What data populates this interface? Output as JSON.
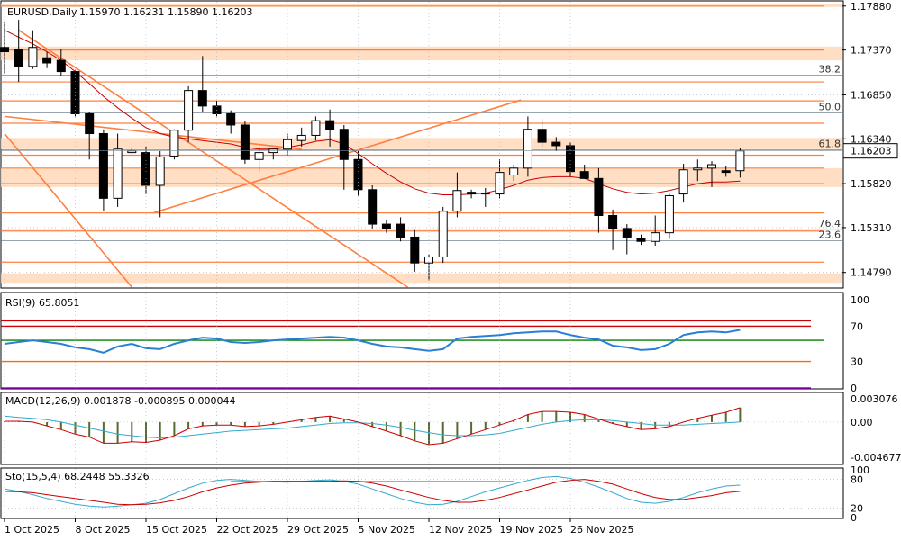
{
  "header": {
    "symbol": "EURUSD,Daily",
    "ohlc": "1.15970 1.16231 1.15890 1.16203"
  },
  "colors": {
    "bull_fill": "#ffffff",
    "bear_fill": "#000000",
    "candle_outline": "#000000",
    "ma_line": "#cc0000",
    "level_line": "#ff7f3f",
    "zone_fill": "#ffd8b8",
    "grid": "#9fb3c5",
    "rsi_line": "#2a7fd4",
    "rsi_70": "#cc0000",
    "rsi_green": "#008000",
    "rsi_30": "#ff6a00",
    "rsi_0": "#9900cc",
    "macd_hist": "#556b2f",
    "macd_signal": "#cc0000",
    "macd_line": "#33aacc",
    "sto_main": "#33aacc",
    "sto_signal": "#cc0000",
    "price_box": "#ffffff"
  },
  "chart_data": [
    {
      "type": "candlestick",
      "title": "EURUSD,Daily",
      "current_price": "1.16203",
      "y_tick_labels": [
        "1.17880",
        "1.17370",
        "1.16850",
        "1.16340",
        "1.15820",
        "1.15310",
        "1.14790"
      ],
      "y_ticks": [
        1.1788,
        1.1737,
        1.1685,
        1.1634,
        1.1582,
        1.1531,
        1.1479
      ],
      "ylim": [
        1.1462,
        1.1793
      ],
      "x_tick_labels": [
        "1 Oct 2025",
        "8 Oct 2025",
        "15 Oct 2025",
        "22 Oct 2025",
        "29 Oct 2025",
        "5 Nov 2025",
        "12 Nov 2025",
        "19 Nov 2025",
        "26 Nov 2025"
      ],
      "x_tick_index": [
        0,
        5,
        10,
        15,
        20,
        25,
        30,
        35,
        40
      ],
      "candles": [
        {
          "o": 1.174,
          "h": 1.177,
          "l": 1.171,
          "c": 1.1735
        },
        {
          "o": 1.1738,
          "h": 1.1772,
          "l": 1.17,
          "c": 1.1718
        },
        {
          "o": 1.1718,
          "h": 1.176,
          "l": 1.1715,
          "c": 1.174
        },
        {
          "o": 1.1728,
          "h": 1.1735,
          "l": 1.1716,
          "c": 1.1722
        },
        {
          "o": 1.1725,
          "h": 1.1738,
          "l": 1.1707,
          "c": 1.1712
        },
        {
          "o": 1.1712,
          "h": 1.1714,
          "l": 1.166,
          "c": 1.1663
        },
        {
          "o": 1.1663,
          "h": 1.1665,
          "l": 1.161,
          "c": 1.164
        },
        {
          "o": 1.164,
          "h": 1.1645,
          "l": 1.155,
          "c": 1.1565
        },
        {
          "o": 1.1565,
          "h": 1.164,
          "l": 1.1555,
          "c": 1.1622
        },
        {
          "o": 1.1618,
          "h": 1.1624,
          "l": 1.1617,
          "c": 1.162
        },
        {
          "o": 1.1618,
          "h": 1.1625,
          "l": 1.157,
          "c": 1.158
        },
        {
          "o": 1.158,
          "h": 1.162,
          "l": 1.1543,
          "c": 1.1613
        },
        {
          "o": 1.1614,
          "h": 1.1645,
          "l": 1.161,
          "c": 1.1644
        },
        {
          "o": 1.1644,
          "h": 1.1695,
          "l": 1.163,
          "c": 1.169
        },
        {
          "o": 1.169,
          "h": 1.173,
          "l": 1.1665,
          "c": 1.1672
        },
        {
          "o": 1.1672,
          "h": 1.1678,
          "l": 1.166,
          "c": 1.1663
        },
        {
          "o": 1.1663,
          "h": 1.1667,
          "l": 1.164,
          "c": 1.165
        },
        {
          "o": 1.165,
          "h": 1.1655,
          "l": 1.1605,
          "c": 1.161
        },
        {
          "o": 1.161,
          "h": 1.1625,
          "l": 1.1595,
          "c": 1.1618
        },
        {
          "o": 1.1618,
          "h": 1.1623,
          "l": 1.161,
          "c": 1.1622
        },
        {
          "o": 1.1622,
          "h": 1.164,
          "l": 1.1615,
          "c": 1.1633
        },
        {
          "o": 1.1632,
          "h": 1.1647,
          "l": 1.1625,
          "c": 1.1638
        },
        {
          "o": 1.1638,
          "h": 1.166,
          "l": 1.1632,
          "c": 1.1655
        },
        {
          "o": 1.1655,
          "h": 1.1668,
          "l": 1.1625,
          "c": 1.1645
        },
        {
          "o": 1.1645,
          "h": 1.165,
          "l": 1.1575,
          "c": 1.161
        },
        {
          "o": 1.161,
          "h": 1.162,
          "l": 1.1568,
          "c": 1.1575
        },
        {
          "o": 1.1575,
          "h": 1.158,
          "l": 1.153,
          "c": 1.1535
        },
        {
          "o": 1.1535,
          "h": 1.154,
          "l": 1.1525,
          "c": 1.153
        },
        {
          "o": 1.1535,
          "h": 1.1543,
          "l": 1.1515,
          "c": 1.152
        },
        {
          "o": 1.152,
          "h": 1.1528,
          "l": 1.148,
          "c": 1.149
        },
        {
          "o": 1.149,
          "h": 1.15,
          "l": 1.147,
          "c": 1.1497
        },
        {
          "o": 1.1497,
          "h": 1.1555,
          "l": 1.149,
          "c": 1.155
        },
        {
          "o": 1.155,
          "h": 1.1595,
          "l": 1.1543,
          "c": 1.1574
        },
        {
          "o": 1.1572,
          "h": 1.1575,
          "l": 1.1565,
          "c": 1.157
        },
        {
          "o": 1.157,
          "h": 1.1577,
          "l": 1.1555,
          "c": 1.1571
        },
        {
          "o": 1.157,
          "h": 1.161,
          "l": 1.1565,
          "c": 1.1595
        },
        {
          "o": 1.1592,
          "h": 1.1604,
          "l": 1.1585,
          "c": 1.16
        },
        {
          "o": 1.16,
          "h": 1.166,
          "l": 1.159,
          "c": 1.1645
        },
        {
          "o": 1.1645,
          "h": 1.1657,
          "l": 1.1625,
          "c": 1.163
        },
        {
          "o": 1.163,
          "h": 1.1636,
          "l": 1.162,
          "c": 1.1626
        },
        {
          "o": 1.1626,
          "h": 1.163,
          "l": 1.159,
          "c": 1.1596
        },
        {
          "o": 1.1596,
          "h": 1.1604,
          "l": 1.1588,
          "c": 1.1588
        },
        {
          "o": 1.1588,
          "h": 1.16,
          "l": 1.1525,
          "c": 1.1545
        },
        {
          "o": 1.1545,
          "h": 1.1552,
          "l": 1.1505,
          "c": 1.153
        },
        {
          "o": 1.153,
          "h": 1.1535,
          "l": 1.15,
          "c": 1.152
        },
        {
          "o": 1.1518,
          "h": 1.1523,
          "l": 1.1511,
          "c": 1.1515
        },
        {
          "o": 1.1515,
          "h": 1.1545,
          "l": 1.151,
          "c": 1.1525
        },
        {
          "o": 1.1525,
          "h": 1.157,
          "l": 1.1518,
          "c": 1.1568
        },
        {
          "o": 1.157,
          "h": 1.1605,
          "l": 1.156,
          "c": 1.1598
        },
        {
          "o": 1.1598,
          "h": 1.161,
          "l": 1.1585,
          "c": 1.16
        },
        {
          "o": 1.16,
          "h": 1.1608,
          "l": 1.1578,
          "c": 1.1604
        },
        {
          "o": 1.1597,
          "h": 1.1602,
          "l": 1.159,
          "c": 1.1595
        },
        {
          "o": 1.1597,
          "h": 1.1623,
          "l": 1.1589,
          "c": 1.162
        }
      ],
      "ma": [
        1.176,
        1.1752,
        1.1744,
        1.1735,
        1.1725,
        1.1712,
        1.1698,
        1.1683,
        1.167,
        1.1658,
        1.1647,
        1.164,
        1.1636,
        1.1634,
        1.1632,
        1.163,
        1.1628,
        1.1624,
        1.1622,
        1.1622,
        1.1624,
        1.1627,
        1.1631,
        1.1633,
        1.1628,
        1.1617,
        1.1605,
        1.1594,
        1.1584,
        1.1576,
        1.1571,
        1.1569,
        1.1569,
        1.157,
        1.1571,
        1.1575,
        1.158,
        1.1586,
        1.1589,
        1.159,
        1.159,
        1.1588,
        1.1582,
        1.1576,
        1.1572,
        1.157,
        1.1571,
        1.1574,
        1.1578,
        1.1582,
        1.1584,
        1.1584,
        1.1585
      ],
      "horizontal_levels": [
        1.1788,
        1.1737,
        1.17,
        1.1678,
        1.1652,
        1.1615,
        1.16,
        1.1582,
        1.1548,
        1.1527,
        1.1491
      ],
      "fib_labels": [
        {
          "label": "38.2",
          "price": 1.1708
        },
        {
          "label": "50.0",
          "price": 1.1664
        },
        {
          "label": "61.8",
          "price": 1.1621
        },
        {
          "label": "76.4",
          "price": 1.1529
        },
        {
          "label": "23.6",
          "price": 1.1516
        }
      ],
      "zones": [
        {
          "from": 1.1787,
          "to": 1.1791
        },
        {
          "from": 1.1725,
          "to": 1.1741
        },
        {
          "from": 1.1622,
          "to": 1.1635
        },
        {
          "from": 1.1578,
          "to": 1.16
        },
        {
          "from": 1.1467,
          "to": 1.1478
        }
      ],
      "trendlines": [
        {
          "i1": 1.0,
          "p1": 1.176,
          "i2": 28.5,
          "p2": 1.1462
        },
        {
          "i1": 0.0,
          "p1": 1.166,
          "i2": 21.0,
          "p2": 1.1622
        },
        {
          "i1": 0.0,
          "p1": 1.164,
          "i2": 9.0,
          "p2": 1.1462
        },
        {
          "i1": 10.5,
          "p1": 1.1548,
          "i2": 36.5,
          "p2": 1.1679
        }
      ]
    },
    {
      "type": "line",
      "title": "RSI(9)",
      "header_label": "RSI(9) 65.8051",
      "ylim": [
        0,
        100
      ],
      "y_tick_labels": [
        "100",
        "70",
        "30",
        "0"
      ],
      "y_ticks": [
        100,
        70,
        30,
        0
      ],
      "levels": [
        70,
        30,
        0
      ],
      "values": [
        50,
        52,
        54,
        52,
        50,
        46,
        44,
        40,
        47,
        50,
        45,
        44,
        50,
        54,
        57,
        56,
        52,
        51,
        52,
        54,
        55,
        56,
        57,
        58,
        57,
        54,
        50,
        47,
        46,
        44,
        42,
        44,
        56,
        58,
        59,
        60,
        62,
        63,
        64,
        64,
        60,
        57,
        55,
        48,
        46,
        43,
        44,
        50,
        60,
        63,
        64,
        63,
        65.8
      ]
    },
    {
      "type": "bar",
      "title": "MACD(12,26,9)",
      "header_label": "MACD(12,26,9) 0.001878 -0.000895 0.000044",
      "ylim": [
        -0.0055,
        0.0038
      ],
      "y_tick_labels": [
        "0.003076",
        "0.00",
        "-0.004677"
      ],
      "y_ticks": [
        0.003076,
        0.0,
        -0.004677
      ],
      "series": [
        {
          "name": "MACD",
          "values": [
            0.0001,
            0.0001,
            0.0,
            -0.0005,
            -0.001,
            -0.0016,
            -0.002,
            -0.0028,
            -0.0028,
            -0.0026,
            -0.0027,
            -0.0024,
            -0.0018,
            -0.0009,
            -0.0005,
            -0.0004,
            -0.0004,
            -0.0006,
            -0.0005,
            -0.0003,
            0.0,
            0.0003,
            0.0006,
            0.0008,
            0.0004,
            0.0,
            -0.0006,
            -0.0012,
            -0.0018,
            -0.0025,
            -0.003,
            -0.0028,
            -0.0022,
            -0.0016,
            -0.001,
            -0.0004,
            0.0002,
            0.001,
            0.0014,
            0.0014,
            0.0013,
            0.001,
            0.0004,
            -0.0002,
            -0.0006,
            -0.001,
            -0.0009,
            -0.0006,
            0.0,
            0.0005,
            0.0009,
            0.0013,
            0.0019
          ]
        },
        {
          "name": "Signal",
          "values": [
            0.0008,
            0.0006,
            0.0005,
            0.0003,
            0.0,
            -0.0004,
            -0.0008,
            -0.0012,
            -0.0016,
            -0.0018,
            -0.002,
            -0.0021,
            -0.002,
            -0.0018,
            -0.0016,
            -0.0014,
            -0.0012,
            -0.0011,
            -0.001,
            -0.0009,
            -0.0008,
            -0.0006,
            -0.0004,
            -0.0002,
            -0.0001,
            -0.0001,
            -0.0002,
            -0.0004,
            -0.0007,
            -0.0011,
            -0.0014,
            -0.0017,
            -0.0018,
            -0.0018,
            -0.0017,
            -0.0015,
            -0.0011,
            -0.0007,
            -0.0003,
            0.0,
            0.0002,
            0.0003,
            0.0003,
            0.0002,
            0.0,
            -0.0002,
            -0.0004,
            -0.0004,
            -0.0004,
            -0.0003,
            -0.0002,
            -0.0001,
            0.0
          ]
        }
      ]
    },
    {
      "type": "line",
      "title": "Sto(15,5,4)",
      "header_label": "Sto(15,5,4) 68.2448 55.3326",
      "ylim": [
        0,
        100
      ],
      "y_tick_labels": [
        "100",
        "80",
        "20",
        "0"
      ],
      "y_ticks": [
        100,
        80,
        20,
        0
      ],
      "levels": [
        80,
        20
      ],
      "series": [
        {
          "name": "Main",
          "values": [
            60,
            55,
            48,
            40,
            34,
            28,
            24,
            22,
            24,
            27,
            30,
            38,
            50,
            62,
            72,
            78,
            80,
            78,
            76,
            75,
            74,
            76,
            78,
            79,
            76,
            70,
            60,
            50,
            40,
            32,
            27,
            28,
            34,
            44,
            54,
            62,
            70,
            78,
            84,
            86,
            82,
            74,
            64,
            52,
            40,
            32,
            30,
            34,
            42,
            52,
            60,
            66,
            68
          ]
        },
        {
          "name": "Signal",
          "values": [
            55,
            54,
            52,
            48,
            44,
            40,
            36,
            32,
            28,
            27,
            28,
            31,
            36,
            44,
            54,
            62,
            68,
            72,
            74,
            76,
            76,
            76,
            76,
            76,
            77,
            76,
            72,
            66,
            58,
            50,
            42,
            36,
            32,
            32,
            36,
            42,
            50,
            58,
            66,
            74,
            78,
            80,
            76,
            70,
            60,
            50,
            42,
            38,
            38,
            42,
            46,
            52,
            55
          ]
        }
      ]
    }
  ]
}
